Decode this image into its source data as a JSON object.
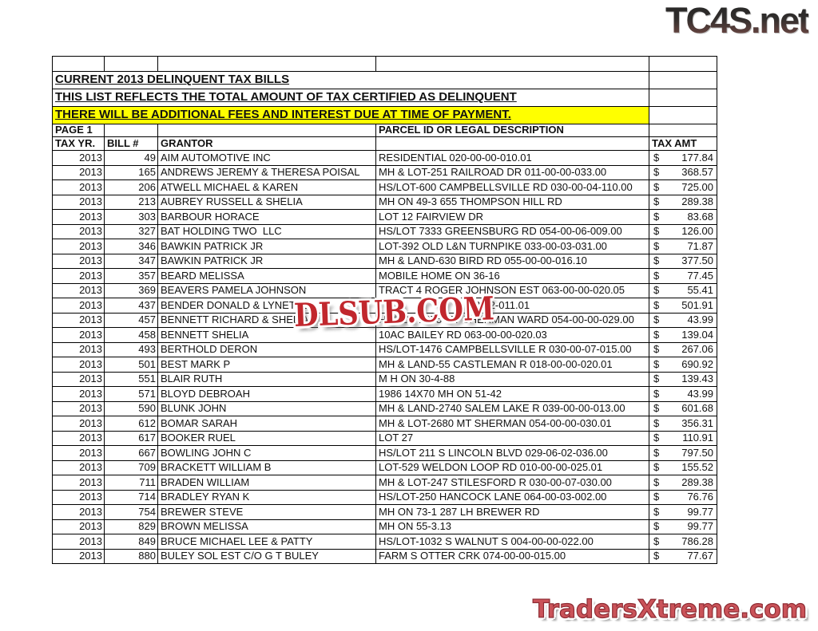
{
  "watermarks": {
    "top_logo": "TC4S.net",
    "center": "DLSUB.COM",
    "bottom_logo": "TradersXtreme.com"
  },
  "colors": {
    "highlight_yellow": "#FFFF00",
    "watermark_red": "#C1272D",
    "bottom_logo_fill": "#CA5359",
    "bottom_logo_outline": "#8E2B33"
  },
  "table": {
    "title1": "CURRENT 2013 DELINQUENT TAX BILLS",
    "title2": "THIS LIST REFLECTS THE TOTAL AMOUNT OF TAX CERTIFIED AS DELINQUENT",
    "notice": "THERE WILL BE ADDITIONAL FEES AND INTEREST DUE AT TIME OF PAYMENT.",
    "page_label": "PAGE 1",
    "parcel_header": "PARCEL ID OR LEGAL DESCRIPTION",
    "columns": [
      "TAX YR.",
      "BILL #",
      "GRANTOR",
      "",
      "TAX AMT"
    ],
    "currency_symbol": "$",
    "rows": [
      {
        "year": "2013",
        "bill": "49",
        "grantor": "AIM AUTOMOTIVE INC",
        "parcel": "RESIDENTIAL 020-00-00-010.01",
        "amount": "177.84"
      },
      {
        "year": "2013",
        "bill": "165",
        "grantor": "ANDREWS JEREMY & THERESA POISAL",
        "parcel": "MH & LOT-251 RAILROAD DR 011-00-00-033.00",
        "amount": "368.57"
      },
      {
        "year": "2013",
        "bill": "206",
        "grantor": "ATWELL MICHAEL & KAREN",
        "parcel": "HS/LOT-600 CAMPBELLSVILLE RD 030-00-04-110.00",
        "amount": "725.00"
      },
      {
        "year": "2013",
        "bill": "213",
        "grantor": "AUBREY RUSSELL & SHELIA",
        "parcel": "MH ON 49-3 655 THOMPSON HILL RD",
        "amount": "289.38"
      },
      {
        "year": "2013",
        "bill": "303",
        "grantor": "BARBOUR HORACE",
        "parcel": "LOT 12 FAIRVIEW DR",
        "amount": "83.68"
      },
      {
        "year": "2013",
        "bill": "327",
        "grantor": "BAT HOLDING TWO  LLC",
        "parcel": "HS/LOT 7333 GREENSBURG RD 054-00-06-009.00",
        "amount": "126.00"
      },
      {
        "year": "2013",
        "bill": "346",
        "grantor": "BAWKIN PATRICK JR",
        "parcel": "LOT-392 OLD L&N TURNPIKE 033-00-03-031.00",
        "amount": "71.87"
      },
      {
        "year": "2013",
        "bill": "347",
        "grantor": "BAWKIN PATRICK JR",
        "parcel": "MH & LAND-630 BIRD RD 055-00-00-016.10",
        "amount": "377.50"
      },
      {
        "year": "2013",
        "bill": "357",
        "grantor": "BEARD MELISSA",
        "parcel": "MOBILE HOME ON 36-16",
        "amount": "77.45"
      },
      {
        "year": "2013",
        "bill": "369",
        "grantor": "BEAVERS PAMELA JOHNSON",
        "parcel": "TRACT 4 ROGER JOHNSON EST 063-00-00-020.05",
        "amount": "55.41"
      },
      {
        "year": "2013",
        "bill": "437",
        "grantor": "BENDER DONALD & LYNETTE",
        "parcel": "                              -03-02-011.01",
        "amount": "501.91"
      },
      {
        "year": "2013",
        "bill": "457",
        "grantor": "BENNETT RICHARD & SHELIA",
        "parcel": "HS/LOT 2075 MT SHERMAN WARD 054-00-00-029.00",
        "amount": "43.99"
      },
      {
        "year": "2013",
        "bill": "458",
        "grantor": "BENNETT SHELIA",
        "parcel": "10AC BAILEY RD 063-00-00-020.03",
        "amount": "139.04"
      },
      {
        "year": "2013",
        "bill": "493",
        "grantor": "BERTHOLD DERON",
        "parcel": "HS/LOT-1476 CAMPBELLSVILLE R 030-00-07-015.00",
        "amount": "267.06"
      },
      {
        "year": "2013",
        "bill": "501",
        "grantor": "BEST MARK P",
        "parcel": "MH & LAND-55 CASTLEMAN R 018-00-00-020.01",
        "amount": "690.92"
      },
      {
        "year": "2013",
        "bill": "551",
        "grantor": "BLAIR RUTH",
        "parcel": "M H ON 30-4-88",
        "amount": "139.43"
      },
      {
        "year": "2013",
        "bill": "571",
        "grantor": "BLOYD DEBROAH",
        "parcel": "1986 14X70 MH ON 51-42",
        "amount": "43.99"
      },
      {
        "year": "2013",
        "bill": "590",
        "grantor": "BLUNK JOHN",
        "parcel": "MH & LAND-2740 SALEM LAKE R 039-00-00-013.00",
        "amount": "601.68"
      },
      {
        "year": "2013",
        "bill": "612",
        "grantor": "BOMAR SARAH",
        "parcel": "MH & LOT-2680 MT SHERMAN 054-00-00-030.01",
        "amount": "356.31"
      },
      {
        "year": "2013",
        "bill": "617",
        "grantor": "BOOKER RUEL",
        "parcel": "LOT 27",
        "amount": "110.91"
      },
      {
        "year": "2013",
        "bill": "667",
        "grantor": "BOWLING JOHN C",
        "parcel": "HS/LOT 211 S LINCOLN BLVD 029-06-02-036.00",
        "amount": "797.50"
      },
      {
        "year": "2013",
        "bill": "709",
        "grantor": "BRACKETT WILLIAM B",
        "parcel": "LOT-529 WELDON LOOP RD 010-00-00-025.01",
        "amount": "155.52"
      },
      {
        "year": "2013",
        "bill": "711",
        "grantor": "BRADEN WILLIAM",
        "parcel": "MH & LOT-247 STILESFORD R 030-00-07-030.00",
        "amount": "289.38"
      },
      {
        "year": "2013",
        "bill": "714",
        "grantor": "BRADLEY RYAN K",
        "parcel": "HS/LOT-250 HANCOCK LANE 064-00-03-002.00",
        "amount": "76.76"
      },
      {
        "year": "2013",
        "bill": "754",
        "grantor": "BREWER STEVE",
        "parcel": "MH ON 73-1 287 LH BREWER RD",
        "amount": "99.77"
      },
      {
        "year": "2013",
        "bill": "829",
        "grantor": "BROWN MELISSA",
        "parcel": "MH ON 55-3.13",
        "amount": "99.77"
      },
      {
        "year": "2013",
        "bill": "849",
        "grantor": "BRUCE MICHAEL LEE & PATTY",
        "parcel": "HS/LOT-1032 S WALNUT S 004-00-00-022.00",
        "amount": "786.28"
      },
      {
        "year": "2013",
        "bill": "880",
        "grantor": "BULEY SOL EST C/O G T BULEY",
        "parcel": "FARM S OTTER CRK 074-00-00-015.00",
        "amount": "77.67"
      }
    ]
  }
}
